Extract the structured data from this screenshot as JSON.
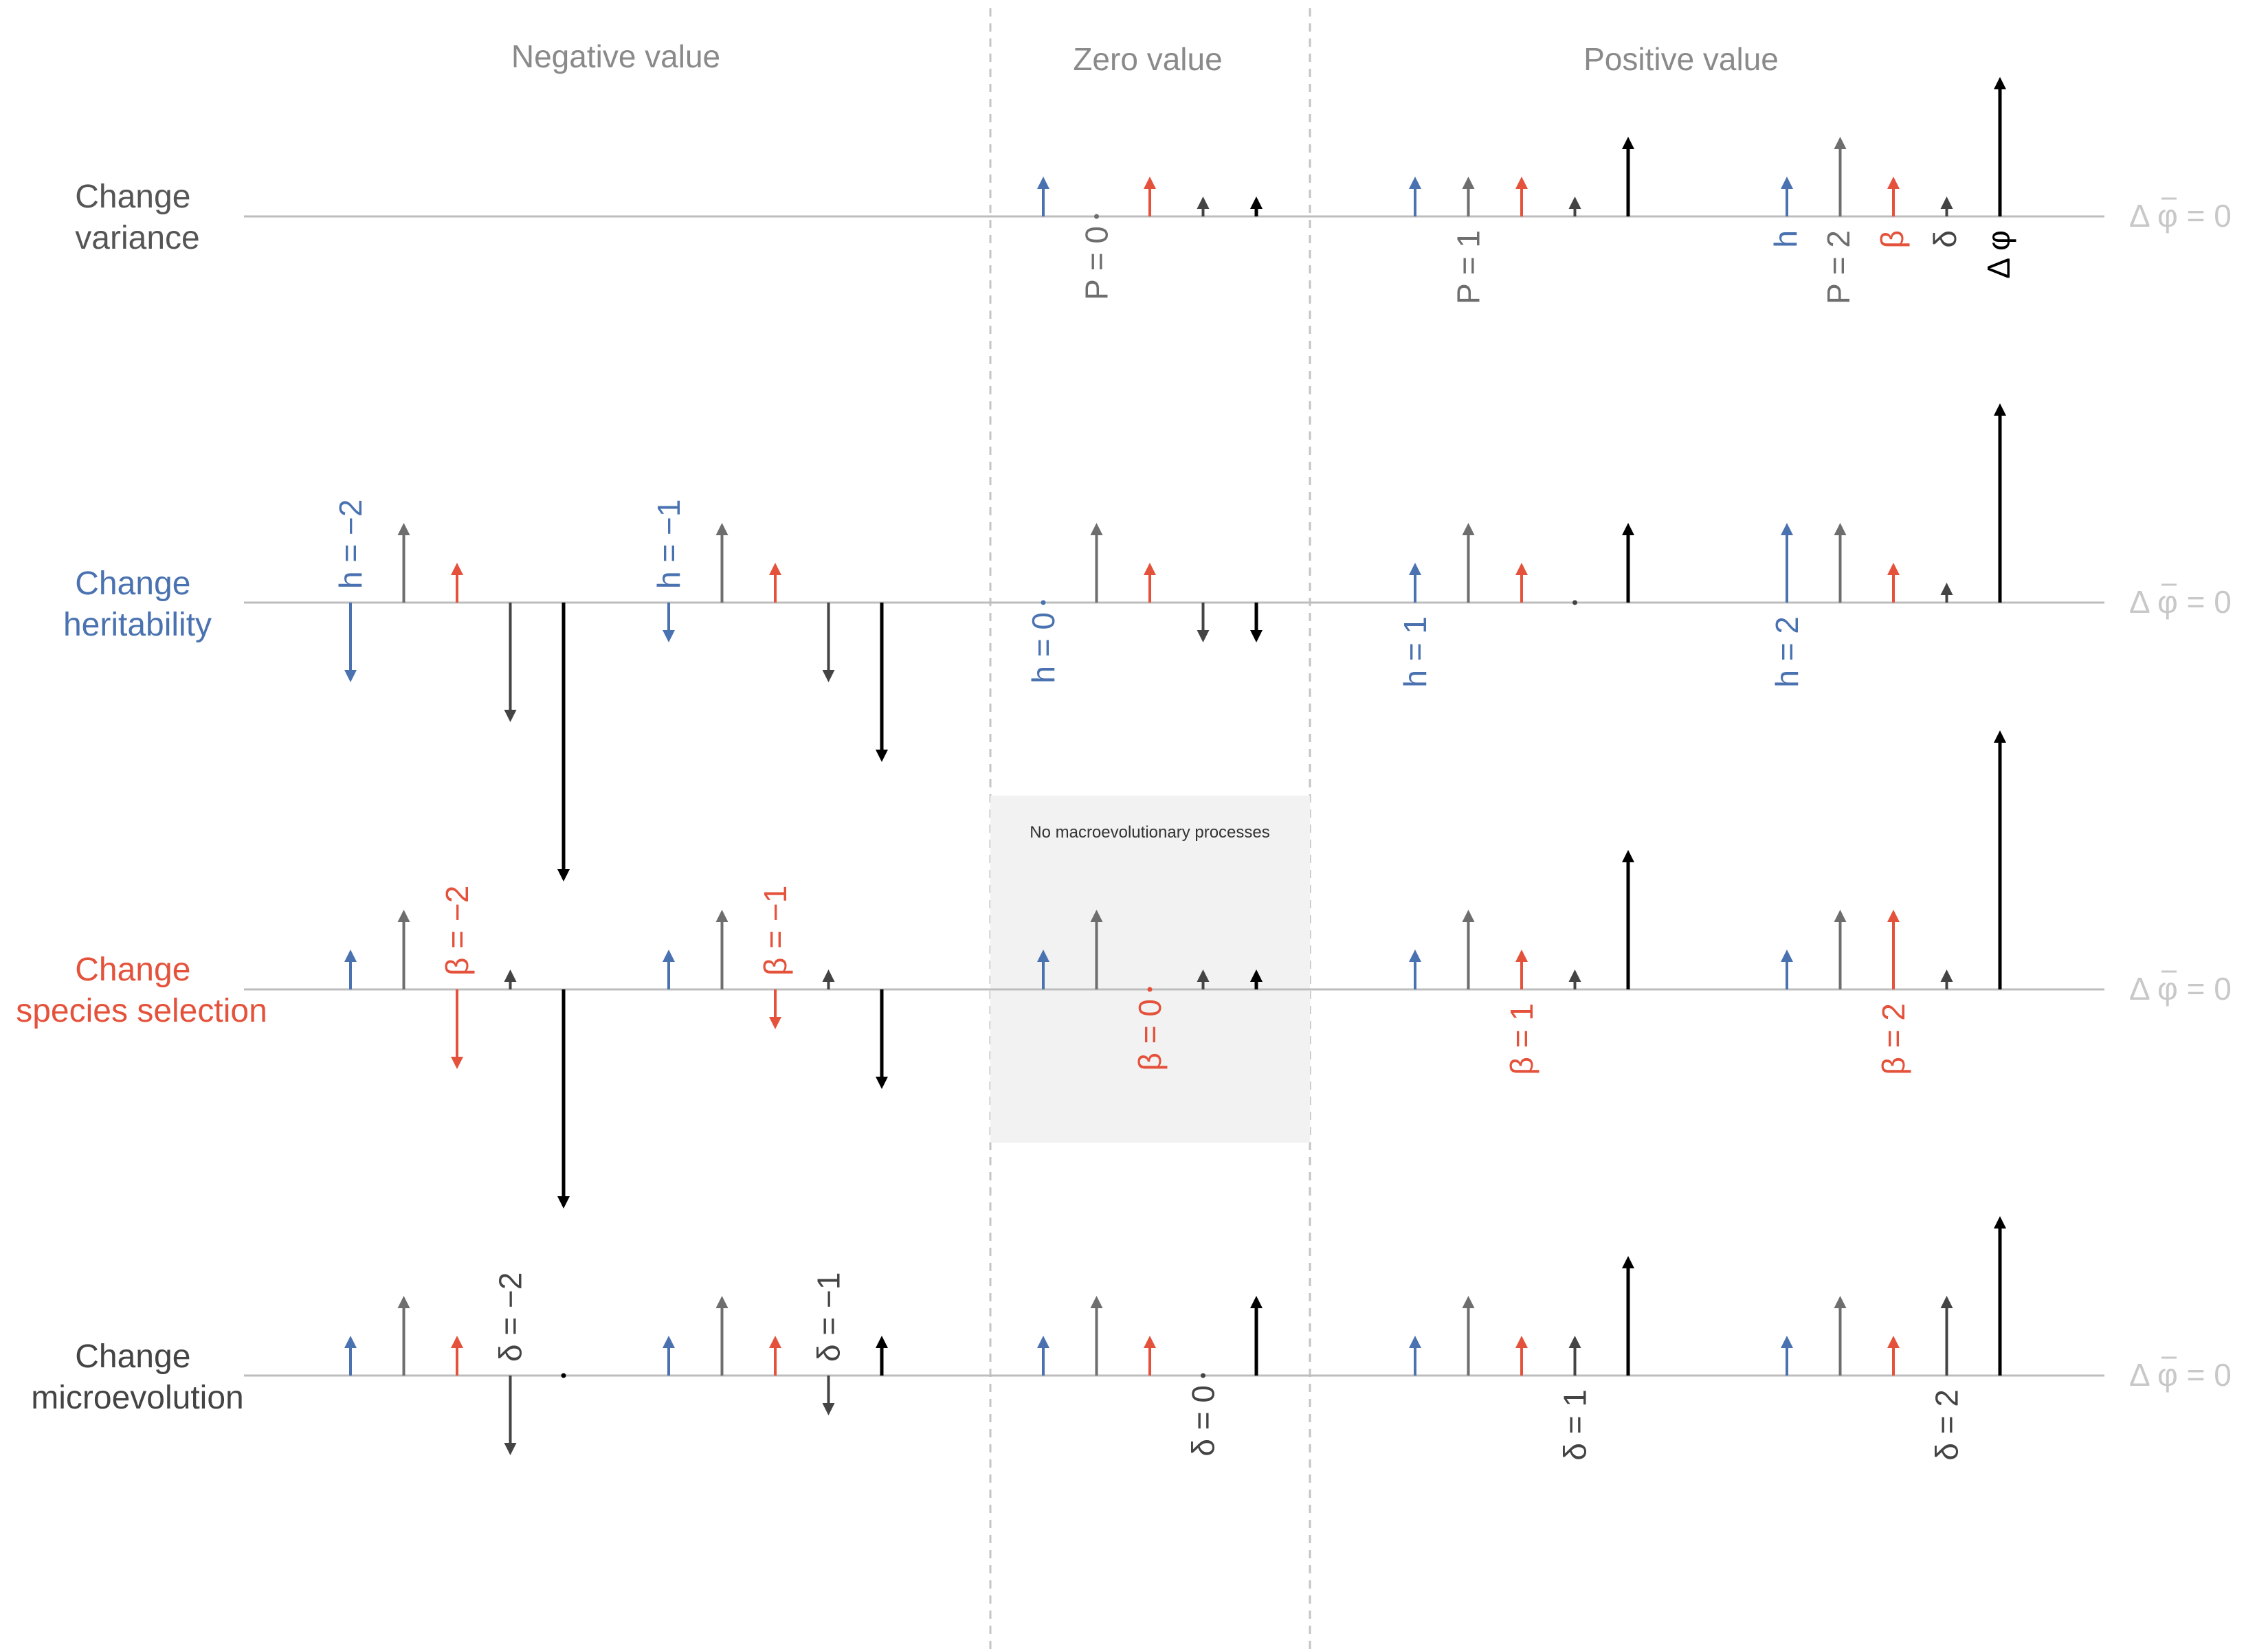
{
  "column_headers": [
    "Negative value",
    "Zero value",
    "Positive value"
  ],
  "rows": [
    {
      "label": [
        "Change",
        "variance"
      ],
      "color": "#555555"
    },
    {
      "label": [
        "Change",
        "heritability"
      ],
      "color": "#4a72b0"
    },
    {
      "label": [
        "Change",
        "species selection"
      ],
      "color": "#e4523b"
    },
    {
      "label": [
        "Change",
        "microevolution"
      ],
      "color": "#444444"
    }
  ],
  "shaded_box_label": "No macroevolutionary processes",
  "right_equation": "Δ φ = 0",
  "colors": {
    "h": "#4a72b0",
    "P": "#6e6e6e",
    "beta": "#e4523b",
    "delta": "#444444",
    "delta_phi": "#000000",
    "row_label_gray": "#555555",
    "header": "#8a8a8a",
    "baseline": "#bdbdbd",
    "box_fill": "#f2f2f2",
    "equation": "#c8c8c8"
  },
  "legend_symbols": [
    "h",
    "P = 2",
    "β",
    "δ",
    "Δ φ"
  ],
  "groups": [
    {
      "row": 0,
      "col": 2,
      "h": 1,
      "P": 0,
      "beta": 1,
      "delta": 0.5,
      "delta_phi": 0.5,
      "label_var": "P",
      "label": "P = 0"
    },
    {
      "row": 0,
      "col": 3,
      "h": 1,
      "P": 1,
      "beta": 1,
      "delta": 0.5,
      "delta_phi": 2,
      "label_var": "P",
      "label": "P = 1"
    },
    {
      "row": 0,
      "col": 4,
      "h": 1,
      "P": 2,
      "beta": 1,
      "delta": 0.5,
      "delta_phi": 3.5,
      "label_var": "P",
      "label": ""
    },
    {
      "row": 1,
      "col": 0,
      "h": -2,
      "P": 2,
      "beta": 1,
      "delta": -3,
      "delta_phi": -7,
      "label_var": "h",
      "label": "h = −2"
    },
    {
      "row": 1,
      "col": 1,
      "h": -1,
      "P": 2,
      "beta": 1,
      "delta": -2,
      "delta_phi": -4,
      "label_var": "h",
      "label": "h = −1"
    },
    {
      "row": 1,
      "col": 2,
      "h": 0,
      "P": 2,
      "beta": 1,
      "delta": -1,
      "delta_phi": -1,
      "label_var": "h",
      "label": "h = 0"
    },
    {
      "row": 1,
      "col": 3,
      "h": 1,
      "P": 2,
      "beta": 1,
      "delta": 0,
      "delta_phi": 2,
      "label_var": "h",
      "label": "h = 1"
    },
    {
      "row": 1,
      "col": 4,
      "h": 2,
      "P": 2,
      "beta": 1,
      "delta": 0.5,
      "delta_phi": 5,
      "label_var": "h",
      "label": "h = 2"
    },
    {
      "row": 2,
      "col": 0,
      "h": 1,
      "P": 2,
      "beta": -2,
      "delta": 0.5,
      "delta_phi": -5.5,
      "label_var": "beta",
      "label": "β = −2"
    },
    {
      "row": 2,
      "col": 1,
      "h": 1,
      "P": 2,
      "beta": -1,
      "delta": 0.5,
      "delta_phi": -2.5,
      "label_var": "beta",
      "label": "β = −1"
    },
    {
      "row": 2,
      "col": 2,
      "h": 1,
      "P": 2,
      "beta": 0,
      "delta": 0.5,
      "delta_phi": 0.5,
      "label_var": "beta",
      "label": "β = 0"
    },
    {
      "row": 2,
      "col": 3,
      "h": 1,
      "P": 2,
      "beta": 1,
      "delta": 0.5,
      "delta_phi": 3.5,
      "label_var": "beta",
      "label": "β = 1"
    },
    {
      "row": 2,
      "col": 4,
      "h": 1,
      "P": 2,
      "beta": 2,
      "delta": 0.5,
      "delta_phi": 6.5,
      "label_var": "beta",
      "label": "β = 2"
    },
    {
      "row": 3,
      "col": 0,
      "h": 1,
      "P": 2,
      "beta": 1,
      "delta": -2,
      "delta_phi": 0,
      "label_var": "delta",
      "label": "δ = −2"
    },
    {
      "row": 3,
      "col": 1,
      "h": 1,
      "P": 2,
      "beta": 1,
      "delta": -1,
      "delta_phi": 1,
      "label_var": "delta",
      "label": "δ = −1"
    },
    {
      "row": 3,
      "col": 2,
      "h": 1,
      "P": 2,
      "beta": 1,
      "delta": 0,
      "delta_phi": 2,
      "label_var": "delta",
      "label": "δ = 0"
    },
    {
      "row": 3,
      "col": 3,
      "h": 1,
      "P": 2,
      "beta": 1,
      "delta": 1,
      "delta_phi": 3,
      "label_var": "delta",
      "label": "δ = 1"
    },
    {
      "row": 3,
      "col": 4,
      "h": 1,
      "P": 2,
      "beta": 1,
      "delta": 2,
      "delta_phi": 4,
      "label_var": "delta",
      "label": "δ = 2"
    }
  ]
}
